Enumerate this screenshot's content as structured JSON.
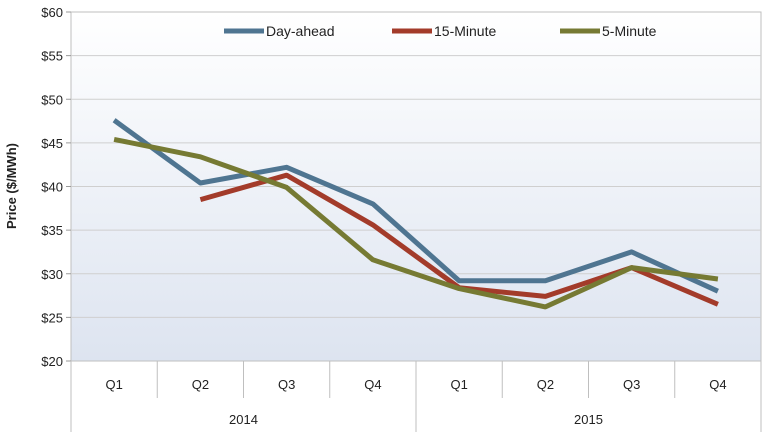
{
  "chart_data": {
    "type": "line",
    "title": "",
    "ylabel": "Price ($/MWh)",
    "xlabel": "",
    "ylim": [
      20,
      60
    ],
    "y_ticks": [
      "$20",
      "$25",
      "$30",
      "$35",
      "$40",
      "$45",
      "$50",
      "$55",
      "$60"
    ],
    "categories": [
      "Q1",
      "Q2",
      "Q3",
      "Q4",
      "Q1",
      "Q2",
      "Q3",
      "Q4"
    ],
    "groups": [
      {
        "label": "2014",
        "span": 4
      },
      {
        "label": "2015",
        "span": 4
      }
    ],
    "legend_position": "top",
    "grid": true,
    "series": [
      {
        "name": "Day-ahead",
        "color": "#4F7591",
        "values": [
          47.6,
          40.4,
          42.2,
          38.0,
          29.2,
          29.2,
          32.5,
          28.0
        ]
      },
      {
        "name": "15-Minute",
        "color": "#A33B2A",
        "values": [
          null,
          38.5,
          41.3,
          35.6,
          28.4,
          27.4,
          30.7,
          26.5
        ]
      },
      {
        "name": "5-Minute",
        "color": "#767A33",
        "values": [
          45.4,
          43.4,
          39.9,
          31.6,
          28.3,
          26.2,
          30.7,
          29.4
        ]
      }
    ]
  }
}
